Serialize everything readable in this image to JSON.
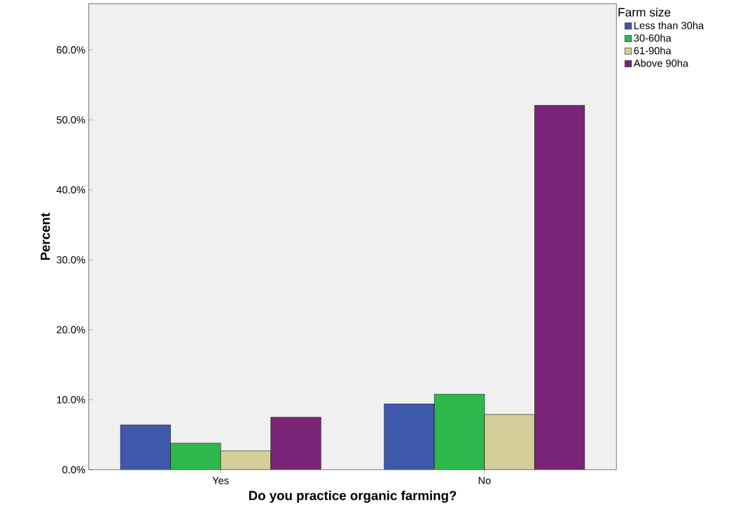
{
  "chart_data": {
    "type": "bar",
    "xlabel": "Do you practice organic farming?",
    "ylabel": "Percent",
    "legend_title": "Farm size",
    "categories": [
      "Yes",
      "No"
    ],
    "series": [
      {
        "name": "Less than 30ha",
        "color": "#3e58ac",
        "values": [
          6.4,
          9.4
        ]
      },
      {
        "name": "30-60ha",
        "color": "#2db84b",
        "values": [
          3.8,
          10.8
        ]
      },
      {
        "name": "61-90ha",
        "color": "#d4cf98",
        "values": [
          2.7,
          7.9
        ]
      },
      {
        "name": "Above 90ha",
        "color": "#7b2579",
        "values": [
          7.5,
          52.1
        ]
      }
    ],
    "ylim": [
      0,
      66.6
    ],
    "yticks": [
      {
        "value": 0,
        "label": "0.0%"
      },
      {
        "value": 10,
        "label": "10.0%"
      },
      {
        "value": 20,
        "label": "20.0%"
      },
      {
        "value": 30,
        "label": "30.0%"
      },
      {
        "value": 40,
        "label": "40.0%"
      },
      {
        "value": 50,
        "label": "50.0%"
      },
      {
        "value": 60,
        "label": "60.0%"
      }
    ],
    "grid": false,
    "legend": "top right"
  }
}
